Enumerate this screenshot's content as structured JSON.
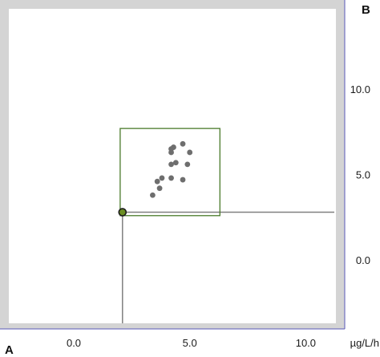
{
  "panel_labels": {
    "top_right": "B",
    "bottom_left": "A"
  },
  "chart_data": {
    "type": "scatter",
    "x_unit": "µg/L/h",
    "xlim": [
      -2.8,
      11.3
    ],
    "ylim": [
      -3.7,
      14.7
    ],
    "x_ticks": [
      {
        "value": 0,
        "label": "0.0"
      },
      {
        "value": 5,
        "label": "5.0"
      },
      {
        "value": 10,
        "label": "10.0"
      }
    ],
    "y_ticks": [
      {
        "value": 0,
        "label": "0.0"
      },
      {
        "value": 5,
        "label": "5.0"
      },
      {
        "value": 10,
        "label": "10.0"
      }
    ],
    "grid": false,
    "series": [
      {
        "points": [
          {
            "x": 3.4,
            "y": 3.8
          },
          {
            "x": 3.6,
            "y": 4.6
          },
          {
            "x": 3.7,
            "y": 4.2
          },
          {
            "x": 3.8,
            "y": 4.8
          },
          {
            "x": 4.2,
            "y": 4.8
          },
          {
            "x": 4.7,
            "y": 4.7
          },
          {
            "x": 4.2,
            "y": 5.6
          },
          {
            "x": 4.4,
            "y": 5.7
          },
          {
            "x": 4.9,
            "y": 5.6
          },
          {
            "x": 4.2,
            "y": 6.3
          },
          {
            "x": 4.2,
            "y": 6.5
          },
          {
            "x": 4.3,
            "y": 6.6
          },
          {
            "x": 4.7,
            "y": 6.8
          },
          {
            "x": 5.0,
            "y": 6.3
          }
        ]
      }
    ],
    "reference_point": {
      "x": 2.1,
      "y": 2.8
    },
    "box": {
      "x0": 2.0,
      "x1": 6.3,
      "y0": 2.6,
      "y1": 7.7
    },
    "colors": {
      "points": "#6e6e6e",
      "box": "#4a7a2a",
      "reference_lines": "#808080",
      "frame": "#d4d4d4",
      "axis_line": "#5a5ab8",
      "marker_ring": "#1a1a1a",
      "marker_fill": "#6b8e23"
    }
  }
}
